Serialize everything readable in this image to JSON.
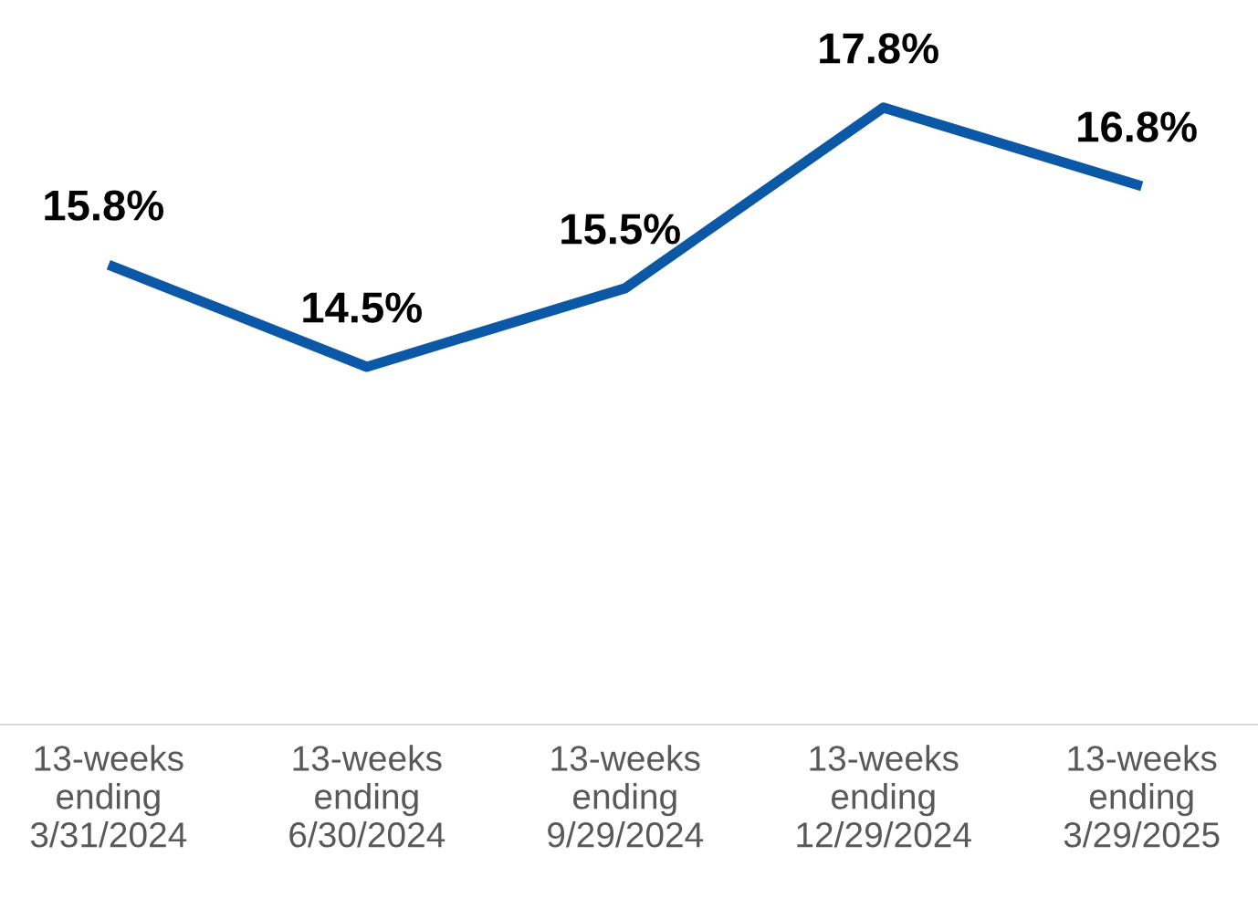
{
  "chart_data": {
    "type": "line",
    "categories": [
      "13-weeks\nending\n3/31/2024",
      "13-weeks\nending\n6/30/2024",
      "13-weeks\nending\n9/29/2024",
      "13-weeks\nending\n12/29/2024",
      "13-weeks\nending\n3/29/2025"
    ],
    "series": [
      {
        "color": "#0b58a6",
        "values": [
          15.8,
          14.5,
          15.5,
          17.8,
          16.8
        ],
        "value_labels": [
          "15.8%",
          "14.5%",
          "15.5%",
          "17.8%",
          "16.8%"
        ]
      }
    ],
    "tick_labels": "x",
    "grid": false,
    "legend": false,
    "marker": "none",
    "line_style": "solid"
  }
}
